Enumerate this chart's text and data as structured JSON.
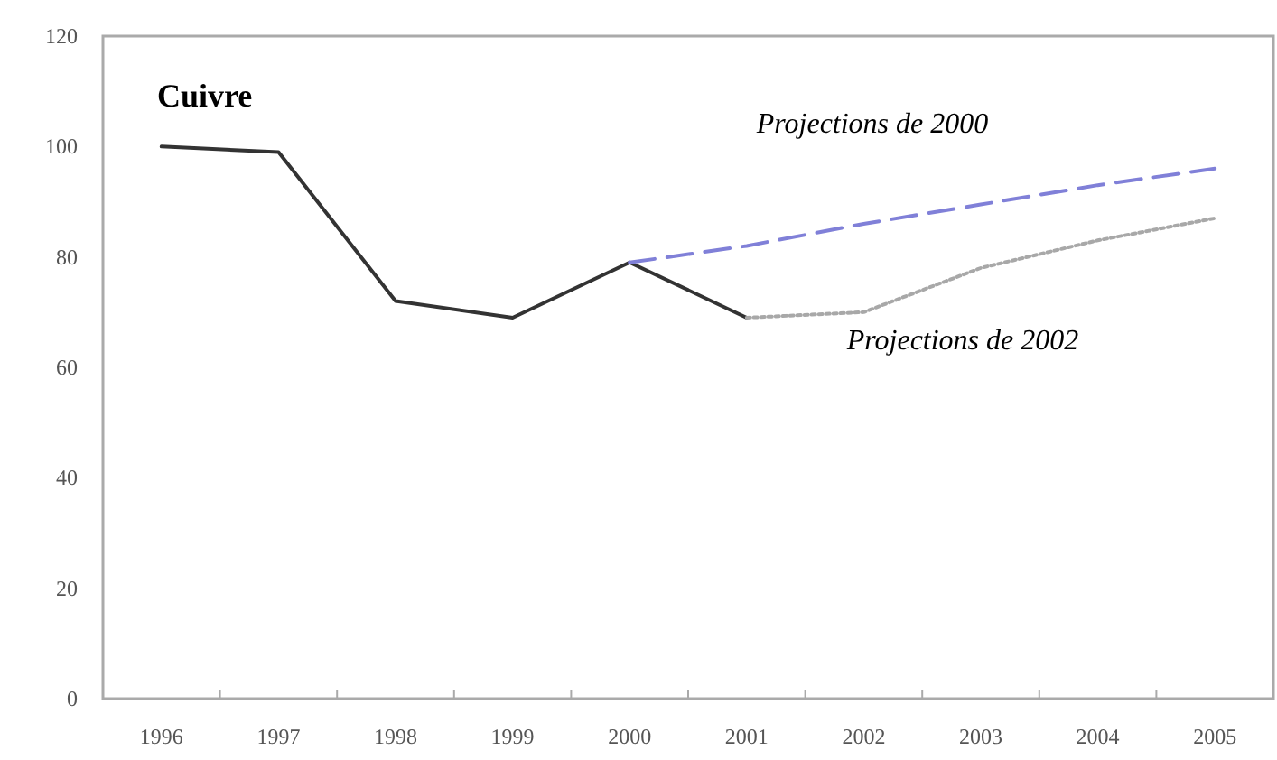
{
  "chart_data": {
    "type": "line",
    "title": "Cuivre",
    "categories": [
      "1996",
      "1997",
      "1998",
      "1999",
      "2000",
      "2001",
      "2002",
      "2003",
      "2004",
      "2005"
    ],
    "series": [
      {
        "color": "#333333",
        "line_style": "solid",
        "values": [
          100,
          99,
          72,
          69,
          79,
          69,
          null,
          null,
          null,
          null
        ]
      },
      {
        "name": "Projections de 2000",
        "color": "#8080d8",
        "line_style": "dashed",
        "values": [
          null,
          null,
          null,
          null,
          79,
          82,
          86,
          89.5,
          93,
          96
        ]
      },
      {
        "name": "Projections de 2002",
        "color": "#a8a8a8",
        "line_style": "dotted",
        "values": [
          null,
          null,
          null,
          null,
          null,
          69,
          70,
          78,
          83,
          87
        ]
      }
    ],
    "ylim": [
      0,
      120
    ],
    "yticks": [
      0,
      20,
      40,
      60,
      80,
      100,
      120
    ],
    "grid": false,
    "marker": "none"
  }
}
